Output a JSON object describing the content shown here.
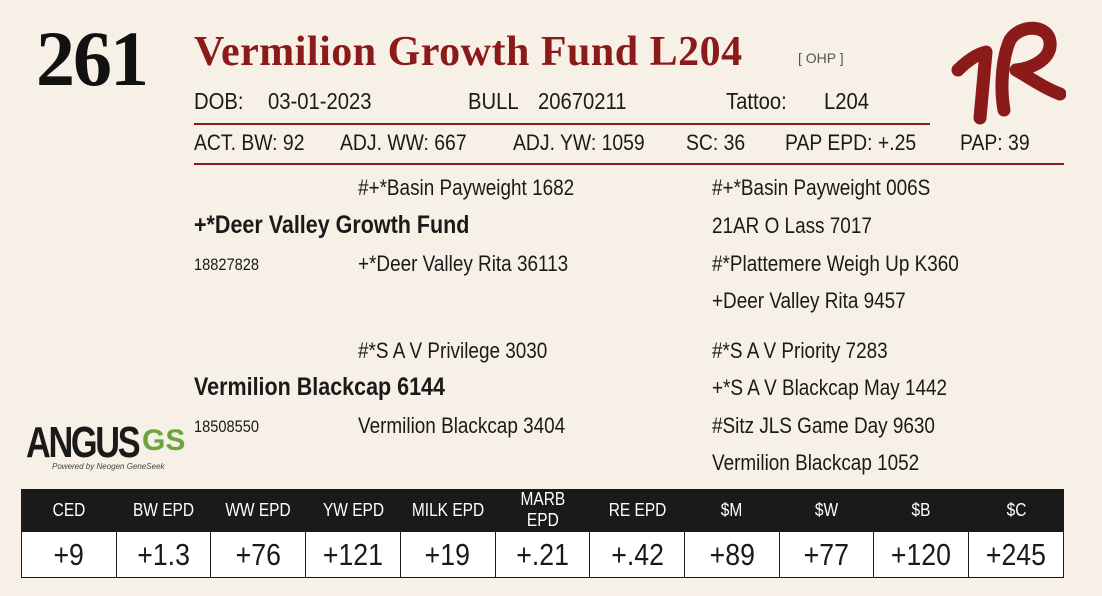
{
  "lot_number": "261",
  "name": "Vermilion Growth Fund L204",
  "tag": "[ OHP ]",
  "dob_label": "DOB:",
  "dob": "03-01-2023",
  "sex": "BULL",
  "reg_number": "20670211",
  "tattoo_label": "Tattoo:",
  "tattoo": "L204",
  "stats": [
    "ACT. BW: 92",
    "ADJ. WW: 667",
    "ADJ. YW: 1059",
    "SC: 36",
    "PAP EPD: +.25",
    "PAP: 39"
  ],
  "pedigree": {
    "sire": "+*Deer Valley Growth Fund",
    "sire_reg": "18827828",
    "sire_sire": "#+*Basin Payweight 1682",
    "sire_dam": "+*Deer Valley Rita 36113",
    "sss": "#+*Basin Payweight 006S",
    "ssd": "21AR O Lass 7017",
    "sds": "#*Plattemere Weigh Up K360",
    "sdd": "+Deer Valley Rita 9457",
    "dam": "Vermilion Blackcap 6144",
    "dam_reg": "18508550",
    "dam_sire": "#*S A V Privilege 3030",
    "dam_dam": "Vermilion Blackcap 3404",
    "dss": "#*S A V Priority 7283",
    "dsd": "+*S A V Blackcap May 1442",
    "dds": "#Sitz JLS Game Day 9630",
    "ddd": "Vermilion Blackcap 1052"
  },
  "logo": {
    "word": "ANGUS",
    "suffix": "GS",
    "tagline": "Powered by Neogen GeneSeek",
    "icon": "angus-gs-logo",
    "accent": "#6aa63c"
  },
  "brand": {
    "icon": "vr-brand-mark",
    "color": "#8b1a1a"
  },
  "epd_headers": [
    "CED",
    "BW EPD",
    "WW EPD",
    "YW EPD",
    "MILK EPD",
    "MARB EPD",
    "RE EPD",
    "$M",
    "$W",
    "$B",
    "$C"
  ],
  "epd_values": [
    "+9",
    "+1.3",
    "+76",
    "+121",
    "+19",
    "+.21",
    "+.42",
    "+89",
    "+77",
    "+120",
    "+245"
  ]
}
